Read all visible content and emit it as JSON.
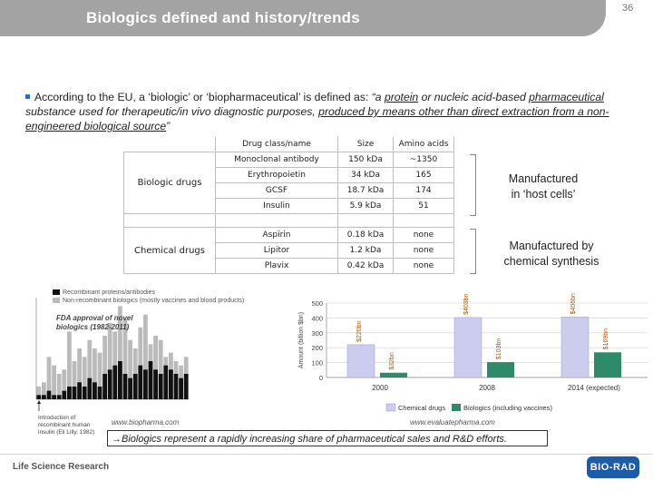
{
  "header": {
    "title": "Biologics defined and history/trends",
    "page_number": "36"
  },
  "bullet": {
    "lead": "According to the EU, a ‘biologic’ or ‘biopharmaceutical’ is defined as: ",
    "q1": "“a ",
    "u1": "protein",
    "q2": " or nucleic acid-based ",
    "u2": "pharmaceutical",
    "q3": " substance used for therapeutic/in vivo diagnostic purposes, ",
    "u3": "produced by means other than direct extraction from a non-engineered biological source",
    "q4": "”"
  },
  "table": {
    "headers": {
      "name": "Drug class/name",
      "size": "Size",
      "aa": "Amino acids"
    },
    "biologic_label": "Biologic drugs",
    "chemical_label": "Chemical drugs",
    "biologic_rows": [
      {
        "name": "Monoclonal antibody",
        "size": "150 kDa",
        "aa": "~1350"
      },
      {
        "name": "Erythropoietin",
        "size": "34 kDa",
        "aa": "165"
      },
      {
        "name": "GCSF",
        "size": "18.7 kDa",
        "aa": "174"
      },
      {
        "name": "Insulin",
        "size": "5.9 kDa",
        "aa": "51"
      }
    ],
    "chemical_rows": [
      {
        "name": "Aspirin",
        "size": "0.18 kDa",
        "aa": "none"
      },
      {
        "name": "Lipitor",
        "size": "1.2 kDa",
        "aa": "none"
      },
      {
        "name": "Plavix",
        "size": "0.42 kDa",
        "aa": "none"
      }
    ]
  },
  "manufactured": {
    "host_line1": "Manufactured",
    "host_line2": "in ‘host cells’",
    "chem_line1": "Manufactured by",
    "chem_line2": "chemical synthesis"
  },
  "chart_data": [
    {
      "type": "bar",
      "title": "FDA approval of novel biologics (1982-2011)",
      "legend": [
        "Recombinant proteins/antibodies",
        "Non-recombinant biologics (mostly vaccines and blood products)"
      ],
      "series": [
        {
          "name": "Recombinant proteins/antibodies",
          "color": "#111111",
          "values": [
            1,
            1,
            2,
            1,
            1,
            2,
            3,
            3,
            4,
            3,
            5,
            4,
            3,
            6,
            7,
            8,
            9,
            6,
            5,
            6,
            8,
            7,
            9,
            7,
            6,
            8,
            7,
            6,
            5,
            6
          ]
        },
        {
          "name": "Non-recombinant biologics (mostly vaccines and blood products)",
          "color": "#bbbbbb",
          "values": [
            3,
            4,
            10,
            8,
            6,
            7,
            16,
            9,
            12,
            10,
            14,
            12,
            11,
            15,
            18,
            16,
            22,
            19,
            14,
            12,
            17,
            20,
            13,
            15,
            14,
            10,
            11,
            9,
            8,
            10
          ]
        }
      ],
      "annotation": "Introduction of recombinant human insulin (Eli Lilly, 1982)",
      "source": "www.biopharma.com"
    },
    {
      "type": "bar",
      "categories": [
        "2000",
        "2008",
        "2014 (expected)"
      ],
      "ylabel": "Amount (billion $bn)",
      "ylim": [
        0,
        500
      ],
      "yticks": [
        0,
        100,
        200,
        300,
        400,
        500
      ],
      "series": [
        {
          "name": "Chemical drugs",
          "color": "#ccccee",
          "values": [
            220,
            403,
            406
          ],
          "labels": [
            "$220bn",
            "$403bn",
            "$406bn"
          ]
        },
        {
          "name": "Biologics (including vaccines)",
          "color": "#2e8b6a",
          "values": [
            32,
            103,
            169
          ],
          "labels": [
            "$32bn",
            "$103bn",
            "$169bn"
          ]
        }
      ],
      "source": "www.evaluatepharma.com"
    }
  ],
  "hist_text": {
    "legend1": "Recombinant proteins/antibodies",
    "legend2": "Non-recombinant biologics (mostly vaccines and blood products)",
    "fda_line1": "FDA approval of novel",
    "fda_line2": "biologics (1982-2011)",
    "insulin": "Introduction of recombinant human insulin (Eli Lilly, 1982)",
    "source": "www.biopharma.com"
  },
  "bar_text": {
    "legend_chem": "Chemical drugs",
    "legend_bio": "Biologics (including vaccines)",
    "source": "www.evaluatepharma.com"
  },
  "caption": "→Biologics represent a rapidly increasing share of pharmaceutical sales and R&D efforts.",
  "footer": {
    "left": "Life Science Research",
    "logo": "BIO-RAD"
  }
}
